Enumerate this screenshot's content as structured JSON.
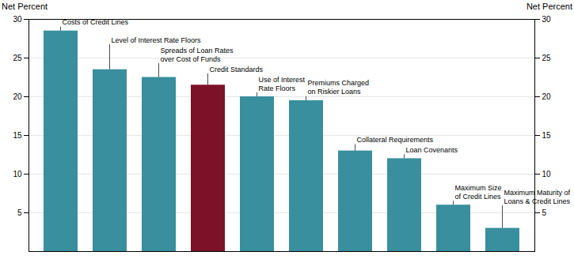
{
  "chart_data": {
    "type": "bar",
    "y_label": "Net Percent",
    "y2_label": "Net Percent",
    "categories": [
      "Costs of Credit Lines",
      "Level of Interest Rate Floors",
      "Spreads of Loan Rates\nover Cost of Funds",
      "Credit Standards",
      "Use of Interest\nRate Floors",
      "Premiums Charged\non Riskier Loans",
      "Collateral Requirements",
      "Loan Covenants",
      "Maximum Size\nof Credit Lines",
      "Maximum Maturity of\nLoans & Credit Lines"
    ],
    "values": [
      28.5,
      23.5,
      22.5,
      21.5,
      20.0,
      19.5,
      13.0,
      12.0,
      6.0,
      3.0
    ],
    "colors": [
      "#3a8f9e",
      "#3a8f9e",
      "#3a8f9e",
      "#7b1228",
      "#3a8f9e",
      "#3a8f9e",
      "#3a8f9e",
      "#3a8f9e",
      "#3a8f9e",
      "#3a8f9e"
    ],
    "ylim": [
      0,
      30
    ],
    "yticks": [
      5,
      10,
      15,
      20,
      25,
      30
    ],
    "y2lim": [
      0,
      30
    ],
    "y2ticks": [
      5,
      10,
      15,
      20,
      25,
      30
    ],
    "grid": true,
    "tick_labels": "y"
  }
}
